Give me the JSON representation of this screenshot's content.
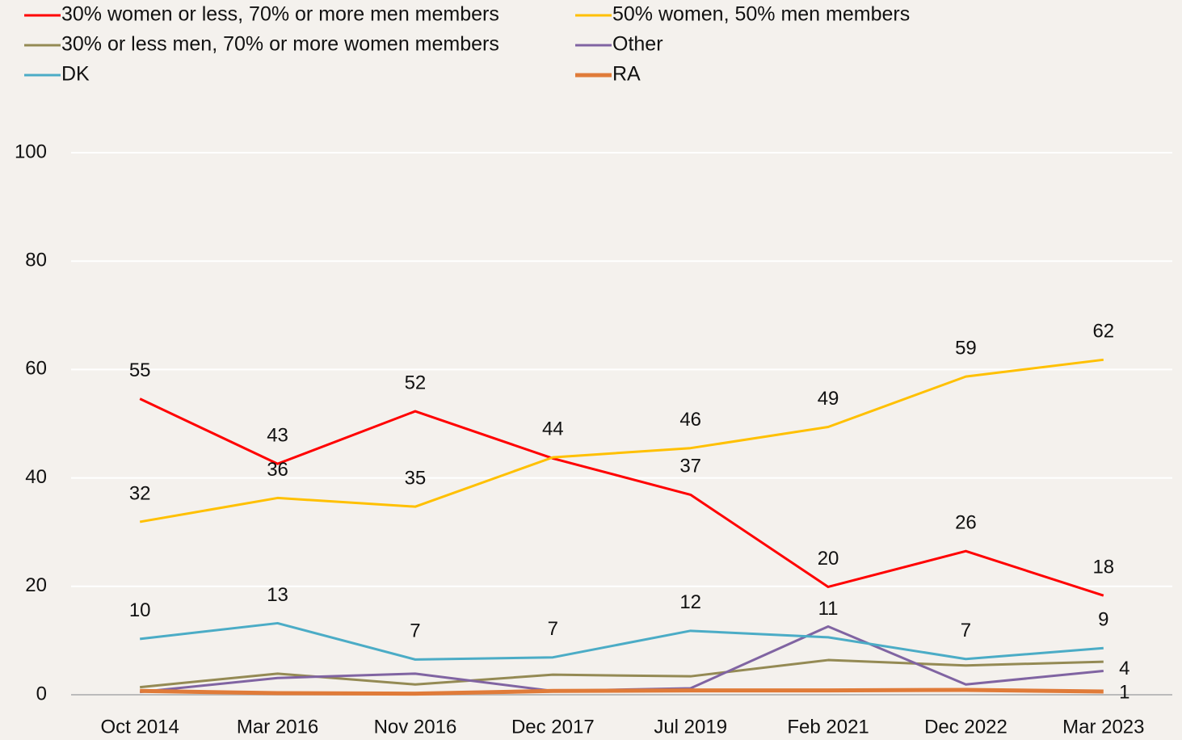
{
  "chart_data": {
    "type": "line",
    "categories": [
      "Oct 2014",
      "Mar 2016",
      "Nov 2016",
      "Dec 2017",
      "Jul 2019",
      "Feb 2021",
      "Dec 2022",
      "Mar 2023"
    ],
    "ylim": [
      0,
      100
    ],
    "yticks": [
      0,
      20,
      40,
      60,
      80,
      100
    ],
    "grid": true,
    "series": [
      {
        "name": "30% women or less, 70% or more men members",
        "color": "#ff0000",
        "values": [
          54.6,
          42.6,
          52.3,
          43.6,
          36.9,
          19.9,
          26.5,
          18.3
        ],
        "value_labels": [
          "55",
          "43",
          "52",
          null,
          "37",
          "20",
          "26",
          "18"
        ]
      },
      {
        "name": "50% women, 50% men members",
        "color": "#ffc000",
        "values": [
          31.9,
          36.3,
          34.7,
          43.8,
          45.5,
          49.4,
          58.7,
          61.8
        ],
        "value_labels": [
          "32",
          "36",
          "35",
          "44",
          "46",
          "49",
          "59",
          "62"
        ]
      },
      {
        "name": "30% or less men, 70% or more women members",
        "color": "#948a54",
        "values": [
          1.4,
          3.9,
          1.9,
          3.7,
          3.4,
          6.4,
          5.4,
          6.1
        ],
        "value_labels": [
          null,
          null,
          null,
          null,
          null,
          null,
          null,
          null
        ]
      },
      {
        "name": "Other",
        "color": "#8064a2",
        "values": [
          0.5,
          3.1,
          3.9,
          0.7,
          1.2,
          12.6,
          1.9,
          4.4
        ],
        "value_labels": [
          null,
          null,
          null,
          null,
          null,
          null,
          null,
          "4"
        ]
      },
      {
        "name": "DK",
        "color": "#4bacc6",
        "values": [
          10.3,
          13.2,
          6.5,
          6.9,
          11.8,
          10.6,
          6.6,
          8.6
        ],
        "value_labels": [
          "10",
          "13",
          "7",
          "7",
          "12",
          "11",
          "7",
          "9"
        ]
      },
      {
        "name": "RA",
        "color": "#e07b39",
        "values": [
          0.7,
          0.3,
          0.2,
          0.7,
          0.8,
          0.8,
          0.9,
          0.6
        ],
        "value_labels": [
          null,
          null,
          null,
          null,
          null,
          null,
          null,
          "1"
        ]
      }
    ]
  }
}
